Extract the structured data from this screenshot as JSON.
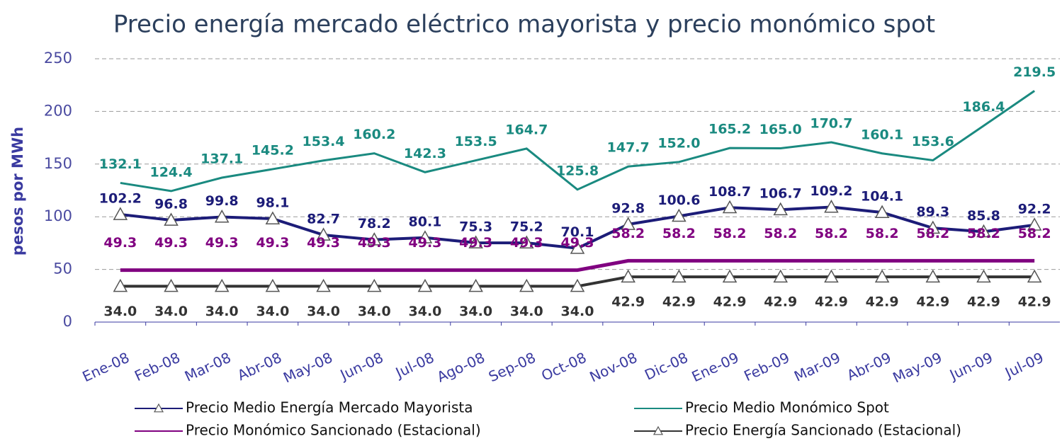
{
  "chart_data": {
    "type": "line",
    "title": "Precio energía mercado eléctrico mayorista y precio monómico spot",
    "y_label": "pesos por MWh",
    "categories": [
      "Ene-08",
      "Feb-08",
      "Mar-08",
      "Abr-08",
      "May-08",
      "Jun-08",
      "Jul-08",
      "Ago-08",
      "Sep-08",
      "Oct-08",
      "Nov-08",
      "Dic-08",
      "Ene-09",
      "Feb-09",
      "Mar-09",
      "Abr-09",
      "May-09",
      "Jun-09",
      "Jul-09"
    ],
    "ylim": [
      0,
      250
    ],
    "yticks": [
      0,
      50,
      100,
      150,
      200,
      250
    ],
    "grid": true,
    "series": [
      {
        "name": "Precio Medio Energía Mercado Mayorista",
        "color": "#1c1c78",
        "marker": "triangle",
        "values": [
          102.2,
          96.8,
          99.8,
          98.1,
          82.7,
          78.2,
          80.1,
          75.3,
          75.2,
          70.1,
          92.8,
          100.6,
          108.7,
          106.7,
          109.2,
          104.1,
          89.3,
          85.8,
          92.2
        ]
      },
      {
        "name": "Precio Medio Monómico Spot",
        "color": "#1a8a80",
        "values": [
          132.1,
          124.4,
          137.1,
          145.2,
          153.4,
          160.2,
          142.3,
          153.5,
          164.7,
          125.8,
          147.7,
          152.0,
          165.2,
          165.0,
          170.7,
          160.1,
          153.6,
          186.4,
          219.5
        ],
        "value_labels": [
          "132.1",
          "124.4",
          "137.1",
          "145.2",
          "153.4",
          "160.2",
          "142.3",
          "153.5",
          "164.7",
          "125.8",
          "147.7",
          "152.0",
          "165.2",
          "165.0",
          "170.7",
          "160.1",
          "153.6",
          "186.4",
          "219.5"
        ]
      },
      {
        "name": "Precio Monómico Sancionado (Estacional)",
        "color": "#800080",
        "values": [
          49.3,
          49.3,
          49.3,
          49.3,
          49.3,
          49.3,
          49.3,
          49.3,
          49.3,
          49.3,
          58.2,
          58.2,
          58.2,
          58.2,
          58.2,
          58.2,
          58.2,
          58.2,
          58.2
        ]
      },
      {
        "name": "Precio Energía Sancionado (Estacional)",
        "color": "#333333",
        "marker": "triangle",
        "values": [
          34.0,
          34.0,
          34.0,
          34.0,
          34.0,
          34.0,
          34.0,
          34.0,
          34.0,
          34.0,
          42.9,
          42.9,
          42.9,
          42.9,
          42.9,
          42.9,
          42.9,
          42.9,
          42.9
        ],
        "value_labels": [
          "34.0",
          "34.0",
          "34.0",
          "34.0",
          "34.0",
          "34.0",
          "34.0",
          "34.0",
          "34.0",
          "34.0",
          "42.9",
          "42.9",
          "42.9",
          "42.9",
          "42.9",
          "42.9",
          "42.9",
          "42.9",
          "42.9"
        ]
      }
    ]
  }
}
